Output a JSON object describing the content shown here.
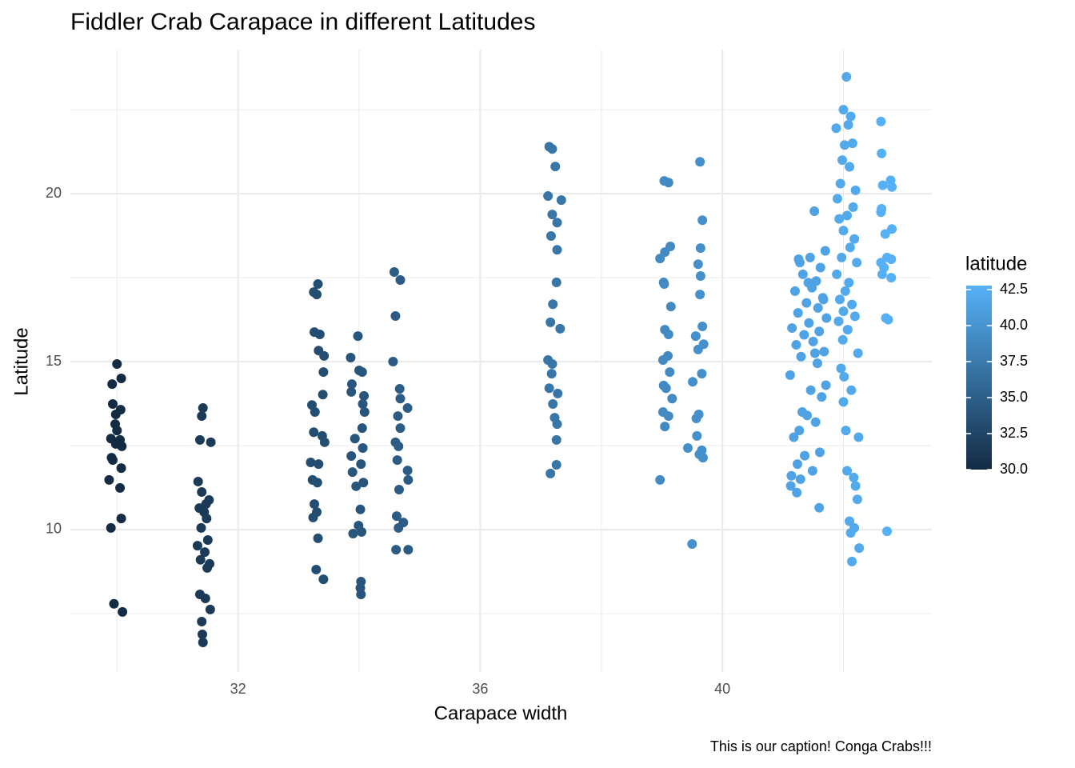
{
  "chart_data": {
    "type": "scatter",
    "title": "Fiddler Crab Carapace in different Latitudes",
    "x_label": "Carapace width",
    "y_label": "Latitude",
    "caption": "This is our caption! Conga Crabs!!!",
    "xlim": [
      29.23,
      43.46
    ],
    "ylim": [
      5.76,
      24.29
    ],
    "xticks": [
      32,
      36,
      40
    ],
    "yticks": [
      10,
      15,
      20
    ],
    "x_minor_ticks": [
      30,
      34,
      38,
      42
    ],
    "y_minor_ticks": [
      7.5,
      12.5,
      17.5,
      22.5
    ],
    "grid": true,
    "legend": {
      "title": "latitude",
      "position": "right",
      "low_color": "#132B43",
      "high_color": "#56B1F7",
      "lim": [
        30,
        42.78
      ],
      "ticks": [
        30.0,
        32.5,
        35.0,
        37.5,
        40.0,
        42.5
      ],
      "tick_labels": [
        "30.0",
        "32.5",
        "35.0",
        "37.5",
        "40.0",
        "42.5"
      ]
    },
    "groups": [
      {
        "latitude": 30.0,
        "x": [
          30.0,
          29.92,
          30.07,
          29.93,
          30.06,
          29.98,
          29.97,
          30.0,
          29.9,
          30.05,
          29.98,
          30.08,
          29.91,
          29.93,
          30.07,
          29.87,
          30.05,
          30.07,
          29.9,
          29.95,
          30.09
        ],
        "y": [
          14.93,
          14.33,
          14.5,
          13.74,
          13.57,
          13.43,
          13.14,
          12.95,
          12.71,
          12.67,
          12.55,
          12.48,
          12.14,
          12.07,
          11.83,
          11.48,
          11.24,
          10.33,
          10.05,
          7.79,
          7.55
        ]
      },
      {
        "latitude": 31.4,
        "x": [
          31.42,
          31.4,
          31.37,
          31.55,
          31.34,
          31.4,
          31.52,
          31.47,
          31.36,
          31.44,
          31.48,
          31.39,
          31.5,
          31.33,
          31.45,
          31.38,
          31.53,
          31.49,
          31.37,
          31.46,
          31.54,
          31.4,
          31.41,
          31.42
        ],
        "y": [
          13.62,
          13.38,
          12.67,
          12.6,
          11.43,
          11.12,
          10.88,
          10.76,
          10.64,
          10.52,
          10.33,
          10.05,
          9.69,
          9.52,
          9.33,
          9.1,
          8.98,
          8.86,
          8.07,
          7.95,
          7.62,
          7.26,
          6.88,
          6.64
        ]
      },
      {
        "latitude": 33.3,
        "x": [
          33.32,
          33.25,
          33.3,
          33.26,
          33.35,
          33.33,
          33.42,
          33.41,
          33.4,
          33.22,
          33.27,
          33.25,
          33.39,
          33.43,
          33.2,
          33.33,
          33.23,
          33.31,
          33.26,
          33.3,
          33.24,
          33.32,
          33.29,
          33.41
        ],
        "y": [
          17.31,
          17.07,
          17.0,
          15.88,
          15.81,
          15.33,
          15.17,
          14.69,
          14.02,
          13.71,
          13.5,
          12.9,
          12.79,
          12.6,
          12.0,
          11.95,
          11.48,
          11.4,
          10.76,
          10.52,
          10.36,
          9.74,
          8.81,
          8.52
        ]
      },
      {
        "latitude": 34.0,
        "x": [
          33.98,
          33.86,
          34.0,
          34.05,
          33.88,
          33.87,
          34.08,
          34.06,
          34.09,
          34.05,
          33.93,
          34.06,
          33.87,
          34.03,
          33.89,
          34.07,
          33.95,
          34.02,
          33.99,
          34.04,
          33.9,
          34.03,
          34.02,
          34.03
        ],
        "y": [
          15.76,
          15.12,
          14.74,
          14.69,
          14.33,
          14.1,
          13.98,
          13.74,
          13.5,
          13.02,
          12.71,
          12.43,
          12.19,
          11.95,
          11.71,
          11.4,
          11.29,
          10.6,
          10.12,
          9.93,
          9.88,
          8.45,
          8.26,
          8.07
        ]
      },
      {
        "latitude": 34.7,
        "x": [
          34.58,
          34.68,
          34.6,
          34.56,
          34.67,
          34.68,
          34.8,
          34.64,
          34.68,
          34.6,
          34.65,
          34.63,
          34.8,
          34.81,
          34.66,
          34.62,
          34.73,
          34.65,
          34.61,
          34.81
        ],
        "y": [
          17.67,
          17.43,
          16.36,
          15.0,
          14.19,
          13.9,
          13.62,
          13.38,
          13.02,
          12.6,
          12.48,
          12.07,
          11.76,
          11.48,
          11.19,
          10.4,
          10.21,
          10.05,
          9.4,
          9.4
        ]
      },
      {
        "latitude": 37.2,
        "x": [
          37.14,
          37.19,
          37.24,
          37.12,
          37.34,
          37.19,
          37.27,
          37.17,
          37.27,
          37.26,
          37.2,
          37.16,
          37.32,
          37.12,
          37.19,
          37.18,
          37.14,
          37.28,
          37.2,
          37.23,
          37.27,
          37.26,
          37.26,
          37.16
        ],
        "y": [
          21.4,
          21.33,
          20.81,
          19.93,
          19.81,
          19.38,
          19.14,
          18.74,
          18.33,
          17.36,
          16.71,
          16.17,
          15.98,
          15.05,
          14.93,
          14.64,
          14.21,
          14.05,
          13.74,
          13.33,
          13.14,
          12.67,
          11.93,
          11.67
        ]
      },
      {
        "latitude": 39.1,
        "x": [
          39.04,
          39.11,
          39.14,
          39.05,
          38.97,
          39.03,
          39.04,
          39.15,
          39.05,
          39.11,
          39.1,
          39.02,
          39.13,
          39.03,
          39.07,
          39.17,
          39.02,
          39.11,
          39.05,
          38.97
        ],
        "y": [
          20.38,
          20.33,
          18.43,
          18.26,
          18.07,
          17.36,
          17.31,
          16.64,
          15.95,
          15.81,
          15.17,
          15.05,
          14.69,
          14.29,
          14.21,
          13.9,
          13.5,
          13.38,
          13.07,
          11.48
        ]
      },
      {
        "latitude": 39.6,
        "x": [
          39.63,
          39.67,
          39.64,
          39.6,
          39.64,
          39.63,
          39.67,
          39.56,
          39.69,
          39.6,
          39.66,
          39.51,
          39.61,
          39.57,
          39.58,
          39.43,
          39.66,
          39.62,
          39.68,
          39.5
        ],
        "y": [
          20.95,
          19.21,
          18.38,
          17.9,
          17.55,
          17.0,
          16.05,
          15.76,
          15.52,
          15.36,
          14.64,
          14.4,
          13.43,
          13.31,
          12.79,
          12.43,
          12.36,
          12.24,
          12.14,
          9.57
        ]
      },
      {
        "latitude": 41.4,
        "x": [
          41.52,
          41.7,
          41.45,
          41.28,
          41.62,
          41.33,
          41.55,
          41.48,
          41.2,
          41.66,
          41.39,
          41.58,
          41.25,
          41.72,
          41.43,
          41.15,
          41.6,
          41.35,
          41.5,
          41.22,
          41.68,
          41.3,
          41.57,
          41.12,
          41.46,
          41.64,
          41.32,
          41.4,
          41.54,
          41.27,
          41.18,
          41.61,
          41.36,
          41.24,
          41.49,
          41.14,
          41.29,
          41.13,
          41.23,
          41.6,
          41.42,
          41.67,
          41.26,
          41.53,
          41.71
        ],
        "y": [
          19.48,
          18.3,
          18.1,
          17.95,
          17.8,
          17.6,
          17.4,
          17.2,
          17.1,
          16.9,
          16.75,
          16.6,
          16.45,
          16.3,
          16.15,
          16.0,
          15.9,
          15.8,
          15.6,
          15.5,
          15.3,
          15.15,
          14.95,
          14.6,
          14.15,
          13.95,
          13.5,
          13.4,
          13.2,
          12.95,
          12.75,
          12.3,
          12.2,
          11.95,
          11.75,
          11.6,
          11.5,
          11.3,
          11.1,
          10.65,
          17.35,
          16.85,
          18.05,
          15.25,
          14.3
        ]
      },
      {
        "latitude": 42.0,
        "x": [
          42.05,
          42.0,
          42.12,
          42.08,
          41.88,
          42.15,
          42.02,
          41.98,
          42.1,
          41.95,
          42.2,
          41.9,
          42.16,
          42.06,
          41.93,
          42.0,
          42.18,
          42.11,
          41.97,
          42.22,
          41.89,
          42.09,
          42.03,
          41.94,
          42.14,
          42.0,
          42.19,
          41.92,
          42.07,
          41.99,
          42.24,
          41.96,
          42.01,
          42.13,
          42.0,
          42.04,
          42.25,
          42.06,
          42.17,
          42.2,
          42.23,
          42.1,
          42.18,
          42.12,
          42.26,
          42.14
        ],
        "y": [
          23.48,
          22.5,
          22.3,
          22.05,
          21.95,
          21.5,
          21.45,
          21.0,
          20.8,
          20.3,
          20.1,
          19.85,
          19.6,
          19.35,
          19.25,
          18.9,
          18.65,
          18.4,
          18.1,
          17.95,
          17.6,
          17.35,
          17.1,
          16.85,
          16.7,
          16.5,
          16.35,
          16.2,
          15.95,
          15.65,
          15.25,
          14.8,
          14.55,
          14.15,
          13.8,
          12.95,
          12.75,
          11.75,
          11.55,
          11.3,
          10.9,
          10.25,
          10.05,
          9.9,
          9.45,
          9.05
        ]
      },
      {
        "latitude": 42.7,
        "x": [
          42.62,
          42.63,
          42.78,
          42.65,
          42.8,
          42.63,
          42.62,
          42.8,
          42.69,
          42.72,
          42.79,
          42.62,
          42.67,
          42.64,
          42.79,
          42.7,
          42.74,
          42.72
        ],
        "y": [
          22.15,
          21.2,
          20.4,
          20.25,
          20.2,
          19.55,
          19.45,
          18.95,
          18.8,
          18.1,
          18.05,
          17.95,
          17.8,
          17.6,
          17.5,
          16.3,
          16.25,
          9.95
        ]
      }
    ]
  }
}
